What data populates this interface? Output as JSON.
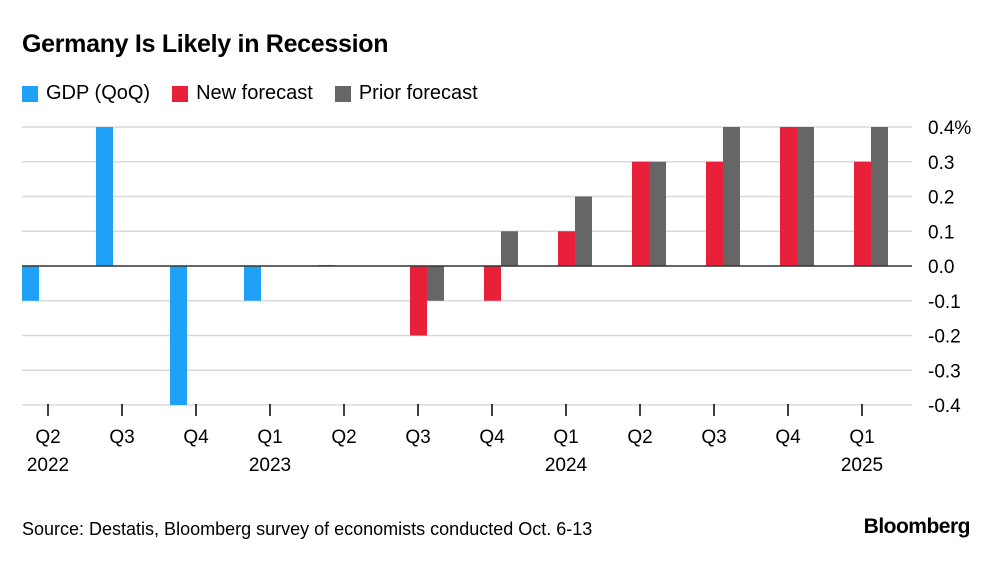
{
  "chart_data": {
    "type": "bar",
    "title": "Germany Is Likely in Recession",
    "categories": [
      "Q2 2022",
      "Q3 2022",
      "Q4 2022",
      "Q1 2023",
      "Q2 2023",
      "Q3 2023",
      "Q4 2023",
      "Q1 2024",
      "Q2 2024",
      "Q3 2024",
      "Q4 2024",
      "Q1 2025"
    ],
    "tick_labels": [
      [
        "Q2",
        "2022"
      ],
      [
        "Q3",
        ""
      ],
      [
        "Q4",
        ""
      ],
      [
        "Q1",
        "2023"
      ],
      [
        "Q2",
        ""
      ],
      [
        "Q3",
        ""
      ],
      [
        "Q4",
        ""
      ],
      [
        "Q1",
        "2024"
      ],
      [
        "Q2",
        ""
      ],
      [
        "Q3",
        ""
      ],
      [
        "Q4",
        ""
      ],
      [
        "Q1",
        "2025"
      ]
    ],
    "series": [
      {
        "name": "GDP (QoQ)",
        "color": "#1fa1f7",
        "values": [
          -0.1,
          0.4,
          -0.4,
          -0.1,
          0.0,
          null,
          null,
          null,
          null,
          null,
          null,
          null
        ]
      },
      {
        "name": "New forecast",
        "color": "#e8203a",
        "values": [
          null,
          null,
          null,
          null,
          null,
          -0.2,
          -0.1,
          0.1,
          0.3,
          0.3,
          0.4,
          0.3
        ]
      },
      {
        "name": "Prior forecast",
        "color": "#666666",
        "values": [
          null,
          null,
          null,
          null,
          null,
          -0.1,
          0.1,
          0.2,
          0.3,
          0.4,
          0.4,
          0.4
        ]
      }
    ],
    "ylim": [
      -0.4,
      0.4
    ],
    "y_ticks": [
      "0.4%",
      "0.3",
      "0.2",
      "0.1",
      "0.0",
      "-0.1",
      "-0.2",
      "-0.3",
      "-0.4"
    ],
    "y_axis_side": "right",
    "grid": true,
    "legend_position": "top-left"
  },
  "footer": {
    "source": "Source: Destatis, Bloomberg survey of economists conducted Oct. 6-13",
    "brand": "Bloomberg"
  }
}
